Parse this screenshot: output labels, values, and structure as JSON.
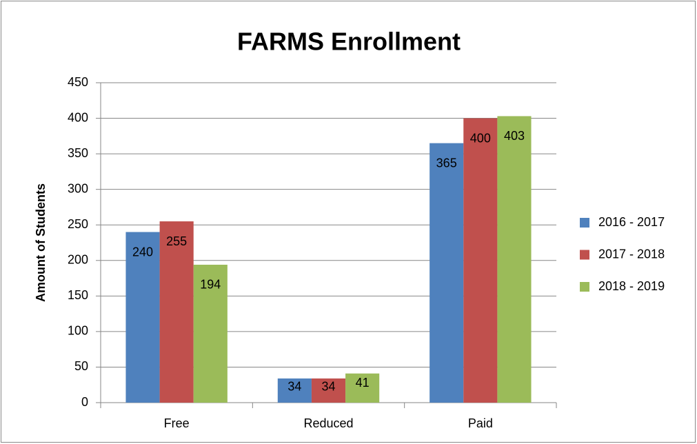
{
  "chart_data": {
    "type": "bar",
    "title": "FARMS Enrollment",
    "y_label": "Amount of Students",
    "categories": [
      "Free",
      "Reduced",
      "Paid"
    ],
    "series": [
      {
        "name": "2016 - 2017",
        "color": "#4f81bd",
        "values": [
          240,
          34,
          365
        ]
      },
      {
        "name": "2017 - 2018",
        "color": "#c0504d",
        "values": [
          255,
          34,
          400
        ]
      },
      {
        "name": "2018 - 2019",
        "color": "#9bbb59",
        "values": [
          194,
          41,
          403
        ]
      }
    ],
    "ylim": [
      0,
      450
    ],
    "yticks": [
      0,
      50,
      100,
      150,
      200,
      250,
      300,
      350,
      400,
      450
    ],
    "grid": true,
    "legend": "right"
  }
}
